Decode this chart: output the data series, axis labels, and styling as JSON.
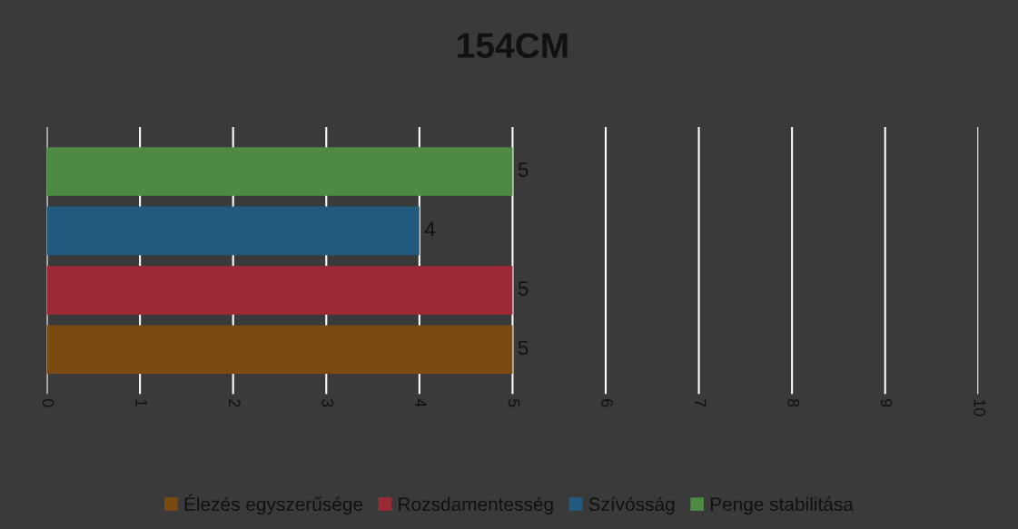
{
  "chart_data": {
    "type": "bar",
    "orientation": "horizontal",
    "title": "154CM",
    "categories": [
      null
    ],
    "series": [
      {
        "name": "Élezés egyszerűsége",
        "color": "#7a4a10",
        "values": [
          5
        ]
      },
      {
        "name": "Rozsdamentesség",
        "color": "#9c2a36",
        "values": [
          5
        ]
      },
      {
        "name": "Szívósság",
        "color": "#235a80",
        "values": [
          4
        ]
      },
      {
        "name": "Penge stabilitása",
        "color": "#4f8a45",
        "values": [
          5
        ]
      }
    ],
    "xlim": [
      0,
      10
    ],
    "xticks": [
      0,
      1,
      2,
      3,
      4,
      5,
      6,
      7,
      8,
      9,
      10
    ],
    "grid": "x",
    "legend": "bottom",
    "data_labels": true
  }
}
